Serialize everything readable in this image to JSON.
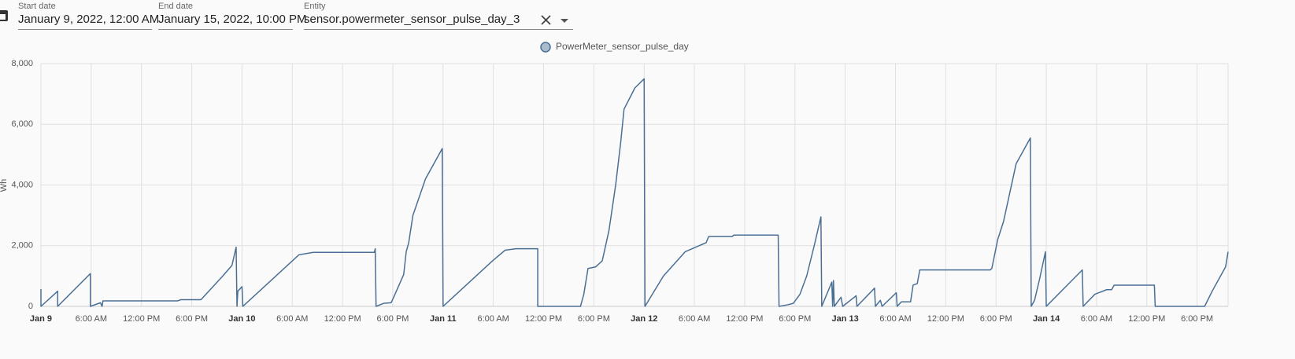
{
  "form": {
    "start_date": {
      "label": "Start date",
      "value": "January 9, 2022, 12:00 AM"
    },
    "end_date": {
      "label": "End date",
      "value": "January 15, 2022, 10:00 PM"
    },
    "entity": {
      "label": "Entity",
      "value": "sensor.powermeter_sensor_pulse_day_3"
    }
  },
  "chart_data": {
    "type": "line",
    "y_label": "Wh",
    "x": [
      0,
      0,
      2.0,
      2.0,
      5.9,
      5.9,
      7.1,
      7.3,
      7.4,
      16.3,
      16.7,
      19.1,
      21.7,
      22.8,
      23.3,
      23.4,
      23.5,
      24.0,
      24.1,
      30.8,
      32.5,
      39.8,
      39.9,
      40.0,
      40.9,
      41.8,
      42.1,
      43.3,
      43.6,
      43.9,
      44.4,
      45.9,
      47.9,
      48.0,
      53.9,
      55.4,
      56.7,
      59.3,
      59.3,
      64.4,
      64.8,
      65.3,
      66.2,
      67.0,
      67.8,
      68.6,
      69.2,
      69.6,
      70.9,
      72.0,
      72.1,
      74.3,
      76.9,
      79.4,
      79.7,
      82.5,
      82.7,
      88.0,
      88.1,
      89.1,
      89.8,
      90.6,
      91.4,
      92.3,
      93.1,
      93.2,
      94.4,
      94.5,
      94.6,
      94.7,
      95.5,
      95.7,
      97.3,
      97.4,
      99.5,
      99.6,
      100.2,
      100.4,
      102.1,
      102.2,
      102.7,
      103.8,
      104.1,
      104.6,
      104.9,
      113.3,
      113.5,
      114.2,
      114.9,
      116.4,
      118.1,
      118.2,
      118.6,
      119.2,
      119.9,
      120.0,
      124.3,
      124.4,
      125.8,
      127.2,
      127.8,
      128.1,
      132.9,
      133.0,
      138.9,
      139.8,
      141.4,
      141.7
    ],
    "series": [
      {
        "name": "PowerMeter_sensor_pulse_day",
        "color": "#4a6f94",
        "values": [
          570,
          0,
          500,
          0,
          1080,
          0,
          120,
          0,
          180,
          180,
          220,
          220,
          1000,
          1350,
          1950,
          0,
          500,
          650,
          0,
          1700,
          1780,
          1780,
          1900,
          0,
          100,
          120,
          300,
          1050,
          1800,
          2100,
          3000,
          4200,
          5200,
          0,
          1500,
          1850,
          1900,
          1900,
          0,
          0,
          400,
          1250,
          1300,
          1500,
          2500,
          4000,
          5400,
          6500,
          7200,
          7500,
          0,
          1000,
          1800,
          2100,
          2300,
          2300,
          2350,
          2350,
          0,
          50,
          100,
          400,
          1000,
          2000,
          2950,
          0,
          800,
          0,
          850,
          0,
          300,
          0,
          350,
          0,
          600,
          0,
          200,
          0,
          450,
          0,
          150,
          150,
          700,
          750,
          1200,
          1200,
          1250,
          2200,
          2800,
          4700,
          5550,
          0,
          200,
          900,
          1800,
          0,
          1200,
          0,
          400,
          550,
          550,
          700,
          700,
          0,
          0,
          500,
          1300,
          1800
        ]
      }
    ],
    "xlim": [
      0,
      141.7
    ],
    "ylim": [
      0,
      8000
    ],
    "xticks": [
      {
        "value": 0,
        "label": "Jan 9"
      },
      {
        "value": 6,
        "label": "6:00 AM"
      },
      {
        "value": 12,
        "label": "12:00 PM"
      },
      {
        "value": 18,
        "label": "6:00 PM"
      },
      {
        "value": 24,
        "label": "Jan 10"
      },
      {
        "value": 30,
        "label": "6:00 AM"
      },
      {
        "value": 36,
        "label": "12:00 PM"
      },
      {
        "value": 42,
        "label": "6:00 PM"
      },
      {
        "value": 48,
        "label": "Jan 11"
      },
      {
        "value": 54,
        "label": "6:00 AM"
      },
      {
        "value": 60,
        "label": "12:00 PM"
      },
      {
        "value": 66,
        "label": "6:00 PM"
      },
      {
        "value": 72,
        "label": "Jan 12"
      },
      {
        "value": 78,
        "label": "6:00 AM"
      },
      {
        "value": 84,
        "label": "12:00 PM"
      },
      {
        "value": 90,
        "label": "6:00 PM"
      },
      {
        "value": 96,
        "label": "Jan 13"
      },
      {
        "value": 102,
        "label": "6:00 AM"
      },
      {
        "value": 108,
        "label": "12:00 PM"
      },
      {
        "value": 114,
        "label": "6:00 PM"
      },
      {
        "value": 120,
        "label": "Jan 14"
      },
      {
        "value": 126,
        "label": "6:00 AM"
      },
      {
        "value": 132,
        "label": "12:00 PM"
      },
      {
        "value": 138,
        "label": "6:00 PM"
      }
    ],
    "yticks": [
      0,
      {
        "value": 2000,
        "label": "2,000"
      },
      {
        "value": 4000,
        "label": "4,000"
      },
      {
        "value": 6000,
        "label": "6,000"
      },
      {
        "value": 8000,
        "label": "8,000"
      }
    ],
    "grid": true
  }
}
